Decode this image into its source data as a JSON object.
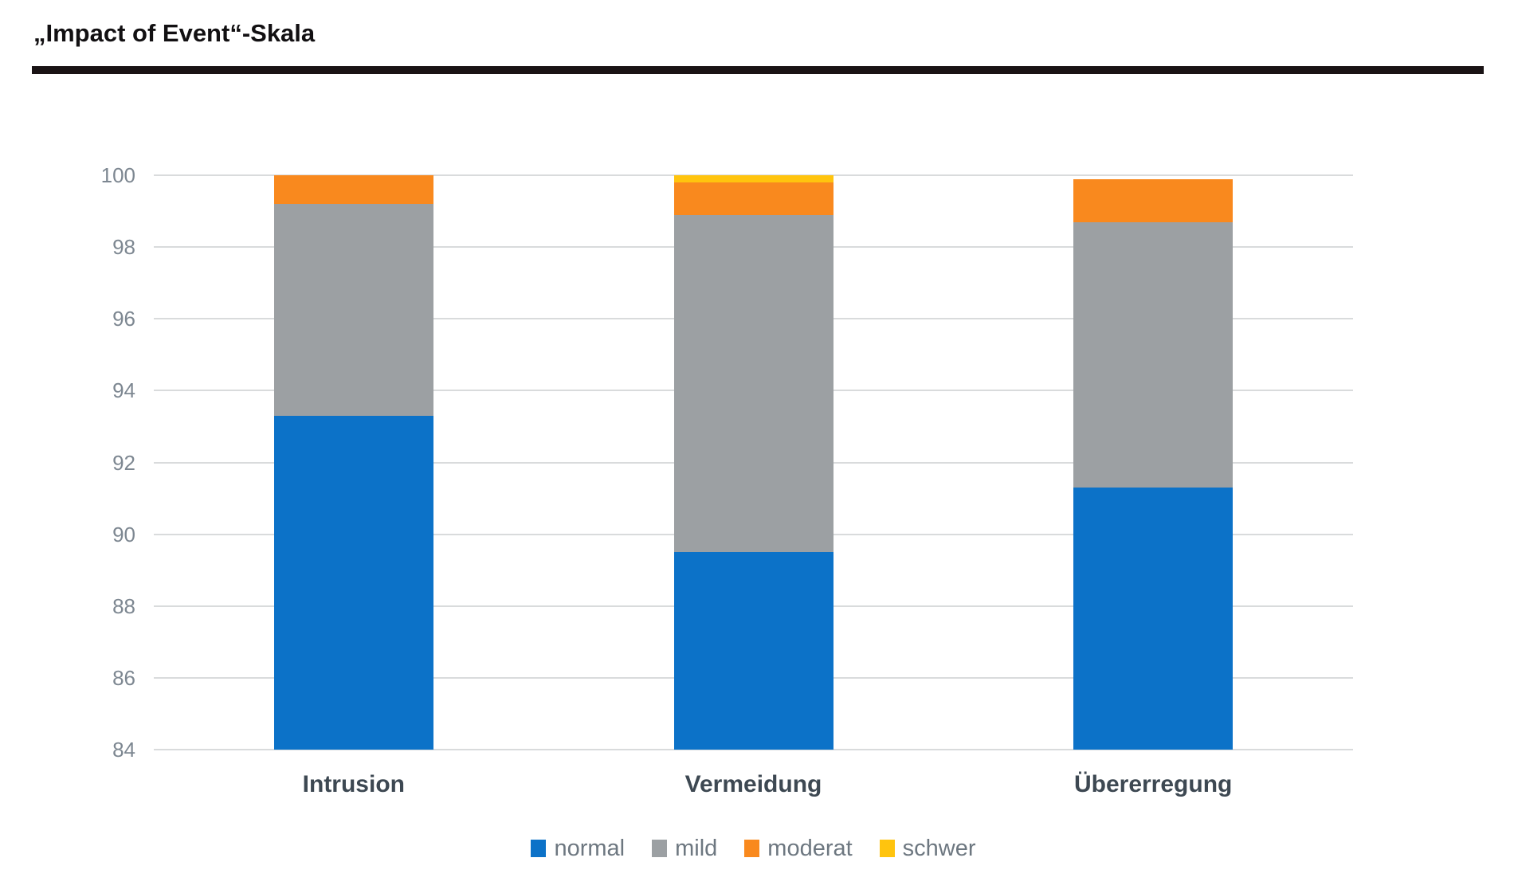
{
  "title": "„Impact of Event“-Skala",
  "chart_data": {
    "type": "bar",
    "subtype": "stacked-column",
    "title": "„Impact of Event“-Skala",
    "categories": [
      "Intrusion",
      "Vermeidung",
      "Übererregung"
    ],
    "series": [
      {
        "name": "normal",
        "color": "#0c72c8",
        "values": [
          93.3,
          89.5,
          91.3
        ]
      },
      {
        "name": "mild",
        "color": "#9ca0a3",
        "values": [
          5.9,
          9.4,
          7.4
        ]
      },
      {
        "name": "moderat",
        "color": "#f9891e",
        "values": [
          0.8,
          0.9,
          1.2
        ]
      },
      {
        "name": "schwer",
        "color": "#ffc40e",
        "values": [
          0.0,
          0.2,
          0.0
        ]
      }
    ],
    "xlabel": "",
    "ylabel": "",
    "ylim": [
      84,
      100
    ],
    "yticks": [
      84,
      86,
      88,
      90,
      92,
      94,
      96,
      98,
      100
    ],
    "grid": true,
    "legend_position": "bottom"
  },
  "colors": {
    "normal": "#0c72c8",
    "mild": "#9ca0a3",
    "moderat": "#f9891e",
    "schwer": "#ffc40e",
    "gridline": "#d9dbdc",
    "tick_label": "#7d8791",
    "category_label": "#3d4852",
    "legend_label": "#6d7780",
    "title_rule": "#1a1315"
  }
}
